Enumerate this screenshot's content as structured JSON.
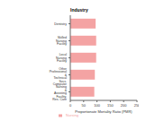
{
  "chart_data": {
    "type": "bar",
    "orientation": "horizontal",
    "title": "Industry",
    "x_label": "Proportionate Mortality Ratio (PMR)",
    "categories": [
      "Dentistry",
      "Skilled Nursing Facility",
      "Local Nursing Facility",
      "Other Professional & Technical Svcs.",
      "Computer Nursing & Assisting Facility, Res. Care"
    ],
    "series": [
      {
        "name": "Nursing",
        "color": "#f4a3a3",
        "values": [
          95,
          97,
          97,
          92,
          90
        ]
      }
    ],
    "xlim": [
      0,
      250
    ],
    "xticks": [
      0,
      50,
      100,
      150,
      200,
      250
    ],
    "grid": false,
    "legend": "bottom"
  }
}
